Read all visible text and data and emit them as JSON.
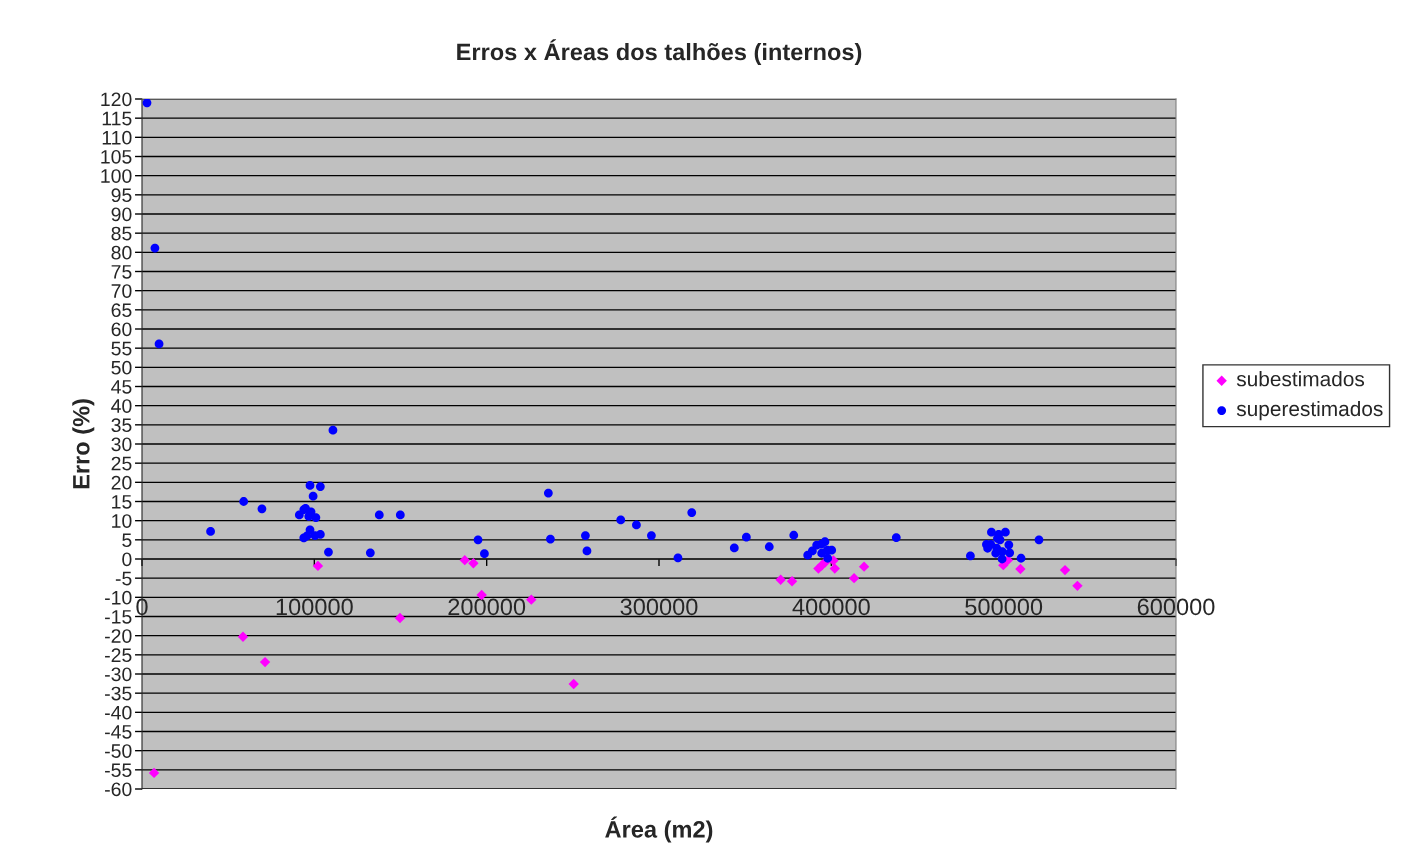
{
  "chart_data": {
    "type": "scatter",
    "title": "Erros x Áreas dos talhões (internos)",
    "xlabel": "Área (m2)",
    "ylabel": "Erro (%)",
    "xlim": [
      0,
      600000
    ],
    "xticks": [
      0,
      100000,
      200000,
      300000,
      400000,
      500000,
      600000
    ],
    "ylim": [
      -60,
      120
    ],
    "yticks": [
      -60,
      -55,
      -50,
      -45,
      -40,
      -35,
      -30,
      -25,
      -20,
      -15,
      -10,
      -5,
      0,
      5,
      10,
      15,
      20,
      25,
      30,
      35,
      40,
      45,
      50,
      55,
      60,
      65,
      70,
      75,
      80,
      85,
      90,
      95,
      100,
      105,
      110,
      115,
      120
    ],
    "grid": "y",
    "legend": "right",
    "series": [
      {
        "name": "subestimados",
        "color": "#ff00ff",
        "marker": "diamond",
        "x": [
          7000,
          58600,
          71400,
          102100,
          149700,
          187300,
          192300,
          197100,
          225900,
          250500,
          370600,
          377200,
          392500,
          394400,
          396300,
          401200,
          402000,
          413200,
          419000,
          499800,
          502400,
          509700,
          535600,
          542800
        ],
        "values": [
          -55.8,
          -20.3,
          -26.9,
          -1.8,
          -15.4,
          -0.3,
          -1.1,
          -9.4,
          -10.6,
          -32.6,
          -5.4,
          -5.8,
          -2.5,
          -1.7,
          -0.9,
          -0.4,
          -2.5,
          -5.0,
          -2.0,
          -1.6,
          -0.3,
          -2.6,
          -2.9,
          -7.0
        ]
      },
      {
        "name": "superestimados",
        "color": "#0000ff",
        "marker": "circle",
        "x": [
          2900,
          7500,
          9900,
          39800,
          59000,
          69600,
          91300,
          93900,
          94900,
          96800,
          97500,
          98100,
          99300,
          100900,
          103500,
          97500,
          93900,
          95700,
          100400,
          103500,
          108200,
          110800,
          132500,
          137700,
          149900,
          195000,
          198700,
          235800,
          237000,
          257300,
          258200,
          277800,
          286900,
          295600,
          311000,
          319000,
          343700,
          350700,
          364000,
          378200,
          386300,
          389000,
          391500,
          394200,
          396300,
          394400,
          397700,
          400200,
          397900,
          437700,
          480700,
          492900,
          501000,
          497100,
          496400,
          497900,
          490000,
          492500,
          490700,
          496000,
          503000,
          503500,
          495400,
          499200,
          499100,
          510100,
          520500
        ],
        "values": [
          119,
          81.1,
          56.1,
          7.2,
          15.0,
          13.1,
          11.5,
          12.9,
          13.2,
          11.1,
          19.2,
          12.3,
          16.4,
          10.8,
          18.9,
          7.6,
          5.5,
          6.0,
          6.1,
          6.4,
          1.8,
          33.6,
          1.6,
          11.5,
          11.5,
          5.0,
          1.4,
          17.2,
          5.2,
          6.1,
          2.1,
          10.2,
          8.9,
          6.1,
          0.3,
          12.1,
          2.9,
          5.7,
          3.2,
          6.2,
          1.0,
          2.1,
          3.6,
          3.9,
          4.5,
          1.5,
          2.3,
          2.3,
          0.2,
          5.6,
          0.8,
          7.0,
          7.0,
          6.4,
          5.4,
          5.0,
          3.8,
          3.8,
          2.8,
          2.8,
          3.7,
          1.6,
          1.5,
          1.9,
          0.0,
          0.2,
          5.0
        ]
      }
    ]
  }
}
